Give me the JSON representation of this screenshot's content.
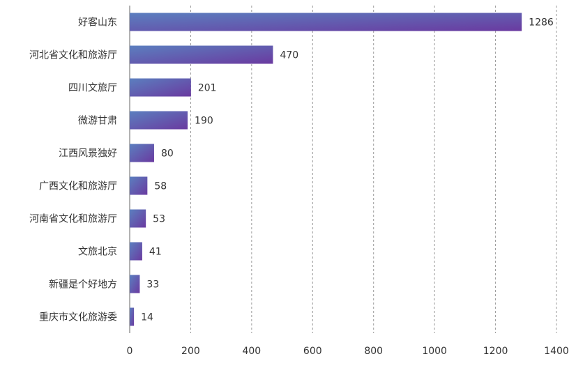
{
  "chart_data": {
    "type": "bar",
    "orientation": "horizontal",
    "categories": [
      "好客山东",
      "河北省文化和旅游厅",
      "四川文旅厅",
      "微游甘肃",
      "江西风景独好",
      "广西文化和旅游厅",
      "河南省文化和旅游厅",
      "文旅北京",
      "新疆是个好地方",
      "重庆市文化旅游委"
    ],
    "values": [
      1286,
      470,
      201,
      190,
      80,
      58,
      53,
      41,
      33,
      14
    ],
    "xlim": [
      0,
      1400
    ],
    "xticks": [
      0,
      200,
      400,
      600,
      800,
      1000,
      1200,
      1400
    ],
    "grid": "vertical-dashed",
    "bar_gradient": [
      "#5b7fbf",
      "#6a3aa0"
    ]
  }
}
